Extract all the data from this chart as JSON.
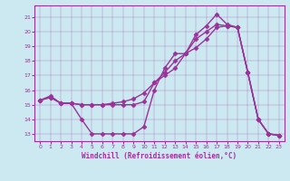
{
  "xlabel": "Windchill (Refroidissement éolien,°C)",
  "bg_color": "#cce8f0",
  "line_color": "#993399",
  "marker": "D",
  "markersize": 2.5,
  "linewidth": 1.0,
  "xlim": [
    -0.5,
    23.5
  ],
  "ylim": [
    12.5,
    21.8
  ],
  "yticks": [
    13,
    14,
    15,
    16,
    17,
    18,
    19,
    20,
    21
  ],
  "xticks": [
    0,
    1,
    2,
    3,
    4,
    5,
    6,
    7,
    8,
    9,
    10,
    11,
    12,
    13,
    14,
    15,
    16,
    17,
    18,
    19,
    20,
    21,
    22,
    23
  ],
  "series1": {
    "x": [
      0,
      1,
      2,
      3,
      4,
      5,
      6,
      7,
      8,
      9,
      10,
      11,
      12,
      13,
      14,
      15,
      16,
      17,
      18,
      19,
      20,
      21,
      22,
      23
    ],
    "y": [
      15.3,
      15.6,
      15.1,
      15.1,
      14.0,
      13.0,
      13.0,
      13.0,
      13.0,
      13.0,
      13.5,
      16.0,
      17.5,
      18.5,
      18.5,
      19.8,
      20.4,
      21.2,
      20.5,
      20.3,
      17.2,
      14.0,
      13.0,
      12.9
    ]
  },
  "series2": {
    "x": [
      0,
      1,
      2,
      3,
      4,
      5,
      6,
      7,
      8,
      9,
      10,
      11,
      12,
      13,
      14,
      15,
      16,
      17,
      18,
      19,
      20,
      21,
      22,
      23
    ],
    "y": [
      15.3,
      15.5,
      15.1,
      15.1,
      15.0,
      15.0,
      15.0,
      15.0,
      15.0,
      15.0,
      15.2,
      16.5,
      17.2,
      18.0,
      18.5,
      19.5,
      20.0,
      20.5,
      20.4,
      20.3,
      17.2,
      14.0,
      13.0,
      12.9
    ]
  },
  "series3": {
    "x": [
      0,
      1,
      2,
      3,
      4,
      5,
      6,
      7,
      8,
      9,
      10,
      11,
      12,
      13,
      14,
      15,
      16,
      17,
      18,
      19,
      20,
      21,
      22,
      23
    ],
    "y": [
      15.3,
      15.5,
      15.1,
      15.1,
      15.0,
      15.0,
      15.0,
      15.1,
      15.2,
      15.4,
      15.8,
      16.5,
      17.0,
      17.5,
      18.5,
      18.9,
      19.5,
      20.3,
      20.4,
      20.3,
      17.2,
      14.0,
      13.0,
      12.9
    ]
  }
}
